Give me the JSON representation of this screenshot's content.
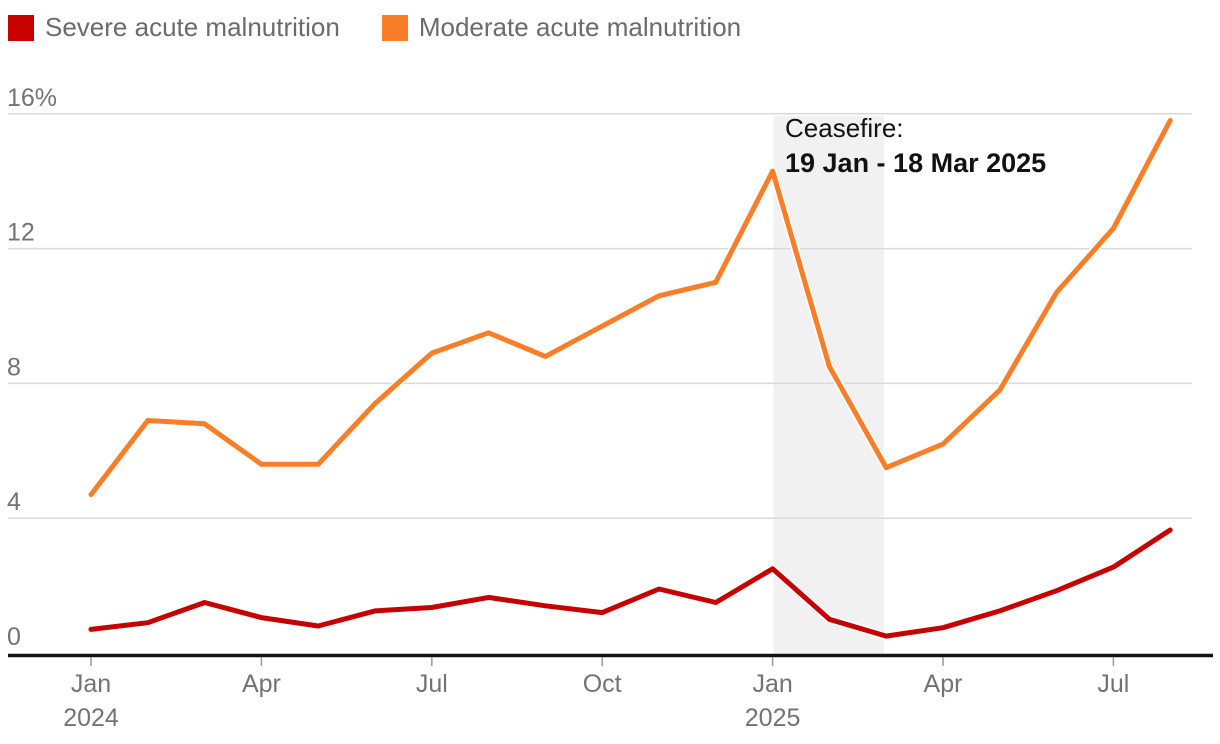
{
  "legend": {
    "items": [
      {
        "id": "severe",
        "label": "Severe acute malnutrition",
        "color": "#c70000"
      },
      {
        "id": "moderate",
        "label": "Moderate acute malnutrition",
        "color": "#f97e27"
      }
    ]
  },
  "annotation": {
    "title": "Ceasefire:",
    "dates": "19 Jan - 18 Mar 2025"
  },
  "chart_data": {
    "type": "line",
    "x": [
      "Jan 2024",
      "Feb 2024",
      "Mar 2024",
      "Apr 2024",
      "May 2024",
      "Jun 2024",
      "Jul 2024",
      "Aug 2024",
      "Sep 2024",
      "Oct 2024",
      "Nov 2024",
      "Dec 2024",
      "Jan 2025",
      "Feb 2025",
      "Mar 2025",
      "Apr 2025",
      "May 2025",
      "Jun 2025",
      "Jul 2025",
      "Aug 2025"
    ],
    "series": [
      {
        "name": "Severe acute malnutrition",
        "color": "#c70000",
        "values": [
          0.7,
          0.9,
          1.5,
          1.05,
          0.8,
          1.25,
          1.35,
          1.65,
          1.4,
          1.2,
          1.9,
          1.5,
          2.5,
          1.0,
          0.5,
          0.75,
          1.25,
          1.85,
          2.55,
          3.65
        ]
      },
      {
        "name": "Moderate acute malnutrition",
        "color": "#f97e27",
        "values": [
          4.7,
          6.9,
          6.8,
          5.6,
          5.6,
          7.4,
          8.9,
          9.5,
          8.8,
          9.7,
          10.6,
          11.0,
          14.3,
          8.5,
          5.5,
          6.2,
          7.8,
          10.7,
          12.6,
          15.8
        ]
      }
    ],
    "ylim": [
      0,
      16
    ],
    "yticks": [
      {
        "value": 0,
        "label": "0"
      },
      {
        "value": 4,
        "label": "4"
      },
      {
        "value": 8,
        "label": "8"
      },
      {
        "value": 12,
        "label": "12"
      },
      {
        "value": 16,
        "label": "16%"
      }
    ],
    "xticks": [
      {
        "month_index": 0,
        "label": "Jan",
        "year": "2024"
      },
      {
        "month_index": 3,
        "label": "Apr"
      },
      {
        "month_index": 6,
        "label": "Jul"
      },
      {
        "month_index": 9,
        "label": "Oct"
      },
      {
        "month_index": 12,
        "label": "Jan",
        "year": "2025"
      },
      {
        "month_index": 15,
        "label": "Apr"
      },
      {
        "month_index": 18,
        "label": "Jul"
      }
    ],
    "shaded_region": {
      "label": "Ceasefire: 19 Jan - 18 Mar 2025",
      "start_month_index": 12.02,
      "end_month_index": 13.96,
      "color": "#f1f1f1"
    },
    "grid": true,
    "legend_position": "top-left",
    "colors": {
      "grid": "#d9d9d9",
      "axis": "#121212",
      "tick_label": "#737373",
      "tick_mark": "#999999"
    }
  }
}
